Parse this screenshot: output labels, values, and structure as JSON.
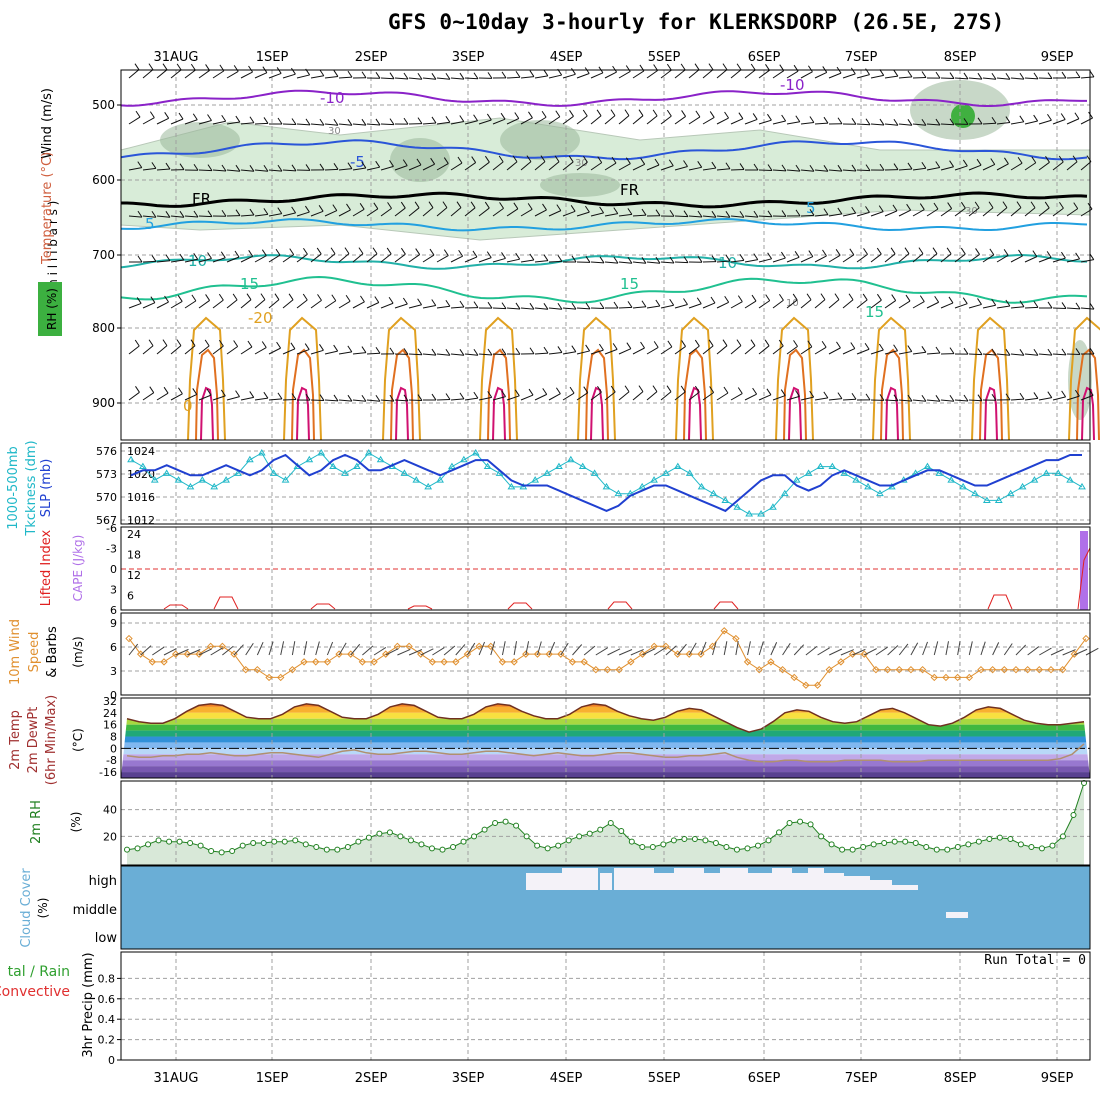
{
  "title": "GFS 0~10day 3-hourly for KLERKSDORP (26.5E, 27S)",
  "days": [
    "31AUG",
    "1SEP",
    "2SEP",
    "3SEP",
    "4SEP",
    "5SEP",
    "6SEP",
    "7SEP",
    "8SEP",
    "9SEP"
  ],
  "colors": {
    "frame": "#000000",
    "grid": "#a0a0a0",
    "temp_m10": "#8a22c8",
    "temp_m5": "#2a55d8",
    "temp_5": "#22a0e0",
    "temp_10": "#22b0a8",
    "temp_15": "#20c090",
    "temp_20": "#e0a020",
    "temp_25": "#e07020",
    "temp_30": "#d01070",
    "rh_fill": "#d8ecd8",
    "rh_fill_dark": "#9ab89a",
    "thickness": "#20b8c8",
    "slp": "#2040d0",
    "li": "#e02020",
    "cape": "#b070e8",
    "wind": "#e09030",
    "rh2m_line": "#208020",
    "rh2m_fill": "#d8e8d8",
    "cloud": "#6aaed6",
    "cloud_clear": "#f4f2f8"
  },
  "panels": {
    "upper": {
      "side_labels": [
        "Wind (m/s)",
        "Temperature (°C)",
        "RH (%)"
      ],
      "axis_label": "( m i l l i b a r s )",
      "pressure_ticks": [
        "500",
        "600",
        "700",
        "800",
        "900"
      ],
      "contour_labels": [
        "-10",
        "-10",
        "-5",
        "5",
        "5",
        "10",
        "10",
        "15",
        "15",
        "15",
        "-20",
        "FR",
        "FR",
        "30",
        "30",
        "30",
        "10",
        "0"
      ]
    },
    "thickness": {
      "labels": [
        "1000-500mb",
        "Tkckness (dm)",
        "SLP (mb)"
      ],
      "left_ticks": [
        "576",
        "573",
        "570",
        "567"
      ],
      "right_ticks": [
        "1024",
        "1020",
        "1016",
        "1012"
      ]
    },
    "li": {
      "labels": [
        "Lifted Index",
        "CAPE (J/kg)"
      ],
      "left_ticks": [
        "-6",
        "-3",
        "0",
        "3",
        "6"
      ],
      "right_ticks": [
        "24",
        "18",
        "12",
        "6"
      ]
    },
    "wind10m": {
      "labels": [
        "10m Wind",
        "Speed",
        "& Barbs"
      ],
      "unit": "(m/s)",
      "ticks": [
        "9",
        "6",
        "3",
        "0"
      ]
    },
    "temp2m": {
      "labels": [
        "2m Temp",
        "2m DewPt",
        "(6hr Min/Max)"
      ],
      "unit": "(°C)",
      "ticks": [
        "32",
        "24",
        "16",
        "8",
        "0",
        "-8",
        "-16"
      ]
    },
    "rh2m": {
      "label": "2m RH",
      "unit": "(%)",
      "ticks": [
        "40",
        "20"
      ]
    },
    "cloud": {
      "label": "Cloud Cover",
      "unit": "(%)",
      "levels": [
        "high",
        "middle",
        "low"
      ]
    },
    "precip": {
      "labels": [
        "tal / Rain",
        "Convective"
      ],
      "axis": "3hr Precip (mm)",
      "ticks": [
        "0.8",
        "0.6",
        "0.4",
        "0.2",
        "0"
      ],
      "run_total": "Run Total = 0"
    }
  },
  "chart_data": [
    {
      "type": "line",
      "title": "1000-500mb Thickness (dm) / SLP (mb)",
      "x_unit": "hours since 30AUG 12Z (3-hourly)",
      "series": [
        {
          "name": "1000-500mb Thickness (dm)",
          "values": [
            575,
            574,
            572,
            573,
            572,
            571,
            572,
            571,
            572,
            573,
            575,
            576,
            573,
            572,
            574,
            575,
            576,
            574,
            573,
            574,
            576,
            575,
            574,
            573,
            572,
            571,
            572,
            574,
            575,
            576,
            574,
            573,
            571,
            571,
            572,
            573,
            574,
            575,
            574,
            573,
            571,
            570,
            570,
            571,
            572,
            573,
            574,
            573,
            571,
            570,
            569,
            568,
            567,
            567,
            568,
            570,
            572,
            573,
            574,
            574,
            573,
            572,
            571,
            570,
            571,
            572,
            573,
            574,
            573,
            572,
            571,
            570,
            569,
            569,
            570,
            571,
            572,
            573,
            573,
            572,
            571
          ]
        },
        {
          "name": "SLP (mb)",
          "values": [
            1020,
            1021,
            1021,
            1022,
            1021,
            1020,
            1020,
            1021,
            1022,
            1021,
            1020,
            1021,
            1023,
            1024,
            1022,
            1020,
            1021,
            1023,
            1024,
            1023,
            1021,
            1021,
            1022,
            1023,
            1022,
            1021,
            1020,
            1021,
            1022,
            1023,
            1023,
            1021,
            1019,
            1018,
            1018,
            1018,
            1017,
            1016,
            1015,
            1014,
            1013,
            1014,
            1016,
            1017,
            1018,
            1018,
            1017,
            1016,
            1015,
            1014,
            1013,
            1015,
            1017,
            1019,
            1020,
            1020,
            1018,
            1017,
            1018,
            1020,
            1021,
            1020,
            1019,
            1018,
            1018,
            1019,
            1020,
            1021,
            1021,
            1020,
            1019,
            1018,
            1018,
            1019,
            1020,
            1021,
            1022,
            1023,
            1023,
            1024,
            1024
          ]
        }
      ],
      "ylim_left": [
        567,
        576
      ],
      "ylim_right": [
        1012,
        1024
      ]
    },
    {
      "type": "line",
      "title": "10m Wind Speed (m/s)",
      "series": [
        {
          "name": "Speed",
          "values": [
            7,
            5,
            4,
            4,
            5,
            5,
            5,
            6,
            6,
            5,
            3,
            3,
            2,
            2,
            3,
            4,
            4,
            4,
            5,
            5,
            4,
            4,
            5,
            6,
            6,
            5,
            4,
            4,
            4,
            5,
            6,
            6,
            4,
            4,
            5,
            5,
            5,
            5,
            4,
            4,
            3,
            3,
            3,
            4,
            5,
            6,
            6,
            5,
            5,
            5,
            6,
            8,
            7,
            4,
            3,
            4,
            3,
            2,
            1,
            1,
            3,
            4,
            5,
            5,
            3,
            3,
            3,
            3,
            3,
            2,
            2,
            2,
            2,
            3,
            3,
            3,
            3,
            3,
            3,
            3,
            3,
            5,
            7
          ]
        }
      ],
      "ylim": [
        0,
        9
      ]
    },
    {
      "type": "line",
      "title": "2m Temp / 2m DewPt (°C)",
      "series": [
        {
          "name": "2m Temp",
          "values": [
            20,
            18,
            17,
            17,
            20,
            25,
            29,
            30,
            29,
            25,
            21,
            20,
            20,
            23,
            28,
            30,
            29,
            25,
            21,
            20,
            20,
            23,
            28,
            30,
            29,
            25,
            21,
            20,
            20,
            23,
            28,
            30,
            29,
            25,
            22,
            20,
            20,
            23,
            28,
            30,
            29,
            25,
            22,
            20,
            19,
            21,
            25,
            27,
            26,
            22,
            18,
            14,
            11,
            13,
            18,
            24,
            26,
            25,
            21,
            18,
            17,
            18,
            22,
            26,
            27,
            24,
            20,
            16,
            15,
            17,
            21,
            26,
            28,
            27,
            23,
            19,
            17,
            16,
            16,
            17,
            18
          ]
        },
        {
          "name": "2m DewPt",
          "values": [
            -5,
            -6,
            -6,
            -5,
            -5,
            -4,
            -4,
            -3,
            -4,
            -5,
            -5,
            -4,
            -3,
            -3,
            -4,
            -5,
            -6,
            -4,
            -2,
            -1,
            -3,
            -4,
            -4,
            -3,
            -2,
            -2,
            -3,
            -4,
            -4,
            -3,
            -2,
            -2,
            -3,
            -4,
            -5,
            -4,
            -3,
            -4,
            -5,
            -5,
            -4,
            -3,
            -3,
            -4,
            -5,
            -6,
            -6,
            -5,
            -5,
            -4,
            -3,
            -6,
            -8,
            -9,
            -9,
            -8,
            -8,
            -9,
            -9,
            -9,
            -8,
            -8,
            -8,
            -8,
            -9,
            -9,
            -9,
            -8,
            -8,
            -8,
            -8,
            -8,
            -8,
            -8,
            -8,
            -8,
            -8,
            -8,
            -7,
            -4,
            3
          ]
        }
      ],
      "ylim": [
        -20,
        34
      ]
    },
    {
      "type": "area",
      "title": "2m RH (%)",
      "series": [
        {
          "name": "2m RH",
          "values": [
            10,
            11,
            14,
            17,
            16,
            16,
            15,
            13,
            9,
            8,
            9,
            13,
            15,
            15,
            16,
            16,
            17,
            14,
            12,
            10,
            10,
            12,
            16,
            19,
            22,
            23,
            20,
            17,
            14,
            11,
            10,
            12,
            16,
            20,
            25,
            30,
            31,
            28,
            20,
            13,
            11,
            13,
            17,
            20,
            22,
            25,
            30,
            24,
            16,
            12,
            12,
            14,
            17,
            18,
            18,
            17,
            15,
            12,
            10,
            11,
            13,
            17,
            23,
            30,
            31,
            29,
            20,
            14,
            10,
            10,
            12,
            14,
            15,
            16,
            16,
            15,
            12,
            10,
            10,
            12,
            14,
            16,
            18,
            19,
            18,
            14,
            12,
            11,
            13,
            20,
            36,
            60
          ]
        }
      ],
      "ylim": [
        0,
        60
      ]
    },
    {
      "type": "bar",
      "title": "3hr Precip (mm)",
      "values": [],
      "ylim": [
        0,
        1
      ]
    }
  ]
}
